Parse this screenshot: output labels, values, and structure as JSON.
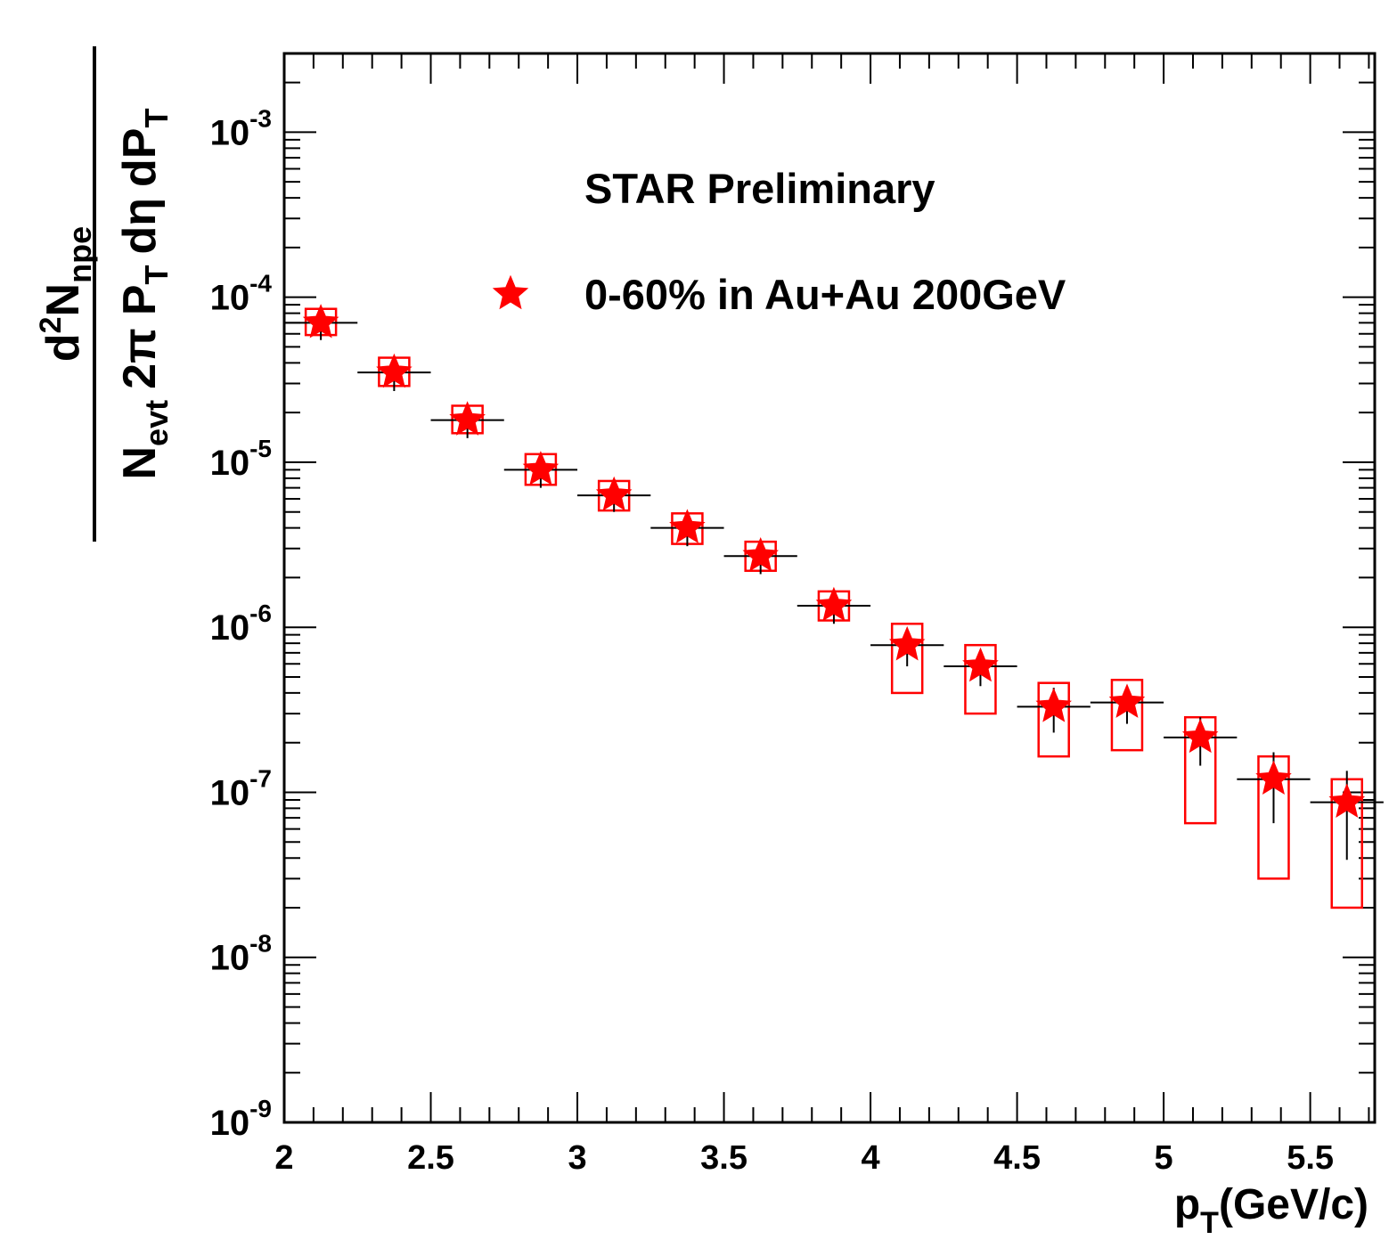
{
  "chart_data": {
    "type": "scatter",
    "title": "STAR Preliminary",
    "xlabel": "p_T(GeV/c)",
    "xlabel_parts": {
      "main": "p",
      "sub": "T",
      "rest": "(GeV/c)"
    },
    "ylabel": "d²N_npe / (N_evt 2π P_T dη dP_T)",
    "ylabel_parts": {
      "num_d": "d",
      "num_sup": "2",
      "num_N": "N",
      "num_sub": "npe",
      "den_N": "N",
      "den_sub": "evt",
      "den_2pi": "2π",
      "den_P": "P",
      "den_Psub": "T",
      "den_deta": "dη",
      "den_dP": "dP",
      "den_dPsub": "T"
    },
    "x_scale": "linear",
    "y_scale": "log",
    "xlim": [
      2.0,
      5.72
    ],
    "ylim": [
      1e-09,
      0.003
    ],
    "x_ticks": [
      {
        "value": 2.0,
        "label": "2"
      },
      {
        "value": 2.5,
        "label": "2.5"
      },
      {
        "value": 3.0,
        "label": "3"
      },
      {
        "value": 3.5,
        "label": "3.5"
      },
      {
        "value": 4.0,
        "label": "4"
      },
      {
        "value": 4.5,
        "label": "4.5"
      },
      {
        "value": 5.0,
        "label": "5"
      },
      {
        "value": 5.5,
        "label": "5.5"
      }
    ],
    "y_ticks": [
      {
        "value": 1e-09,
        "base": "10",
        "exp": "-9"
      },
      {
        "value": 1e-08,
        "base": "10",
        "exp": "-8"
      },
      {
        "value": 1e-07,
        "base": "10",
        "exp": "-7"
      },
      {
        "value": 1e-06,
        "base": "10",
        "exp": "-6"
      },
      {
        "value": 1e-05,
        "base": "10",
        "exp": "-5"
      },
      {
        "value": 0.0001,
        "base": "10",
        "exp": "-4"
      },
      {
        "value": 0.001,
        "base": "10",
        "exp": "-3"
      }
    ],
    "legend": {
      "label": "0-60% in Au+Au 200GeV",
      "marker": "star",
      "placement": "top-right"
    },
    "grid": false,
    "series": [
      {
        "name": "0-60% in Au+Au 200GeV",
        "color": "#ff0000",
        "points": [
          {
            "x": 2.125,
            "y": 7e-05,
            "xerr": 0.125,
            "yerr_lo": 1.5e-05,
            "yerr_hi": 1.5e-05,
            "sys_lo": 5.9e-05,
            "sys_hi": 8.5e-05
          },
          {
            "x": 2.375,
            "y": 3.5e-05,
            "xerr": 0.125,
            "yerr_lo": 8e-06,
            "yerr_hi": 8e-06,
            "sys_lo": 2.9e-05,
            "sys_hi": 4.3e-05
          },
          {
            "x": 2.625,
            "y": 1.8e-05,
            "xerr": 0.125,
            "yerr_lo": 4e-06,
            "yerr_hi": 4e-06,
            "sys_lo": 1.5e-05,
            "sys_hi": 2.2e-05
          },
          {
            "x": 2.875,
            "y": 9e-06,
            "xerr": 0.125,
            "yerr_lo": 2e-06,
            "yerr_hi": 2e-06,
            "sys_lo": 7.3e-06,
            "sys_hi": 1.12e-05
          },
          {
            "x": 3.125,
            "y": 6.3e-06,
            "xerr": 0.125,
            "yerr_lo": 1.3e-06,
            "yerr_hi": 1.3e-06,
            "sys_lo": 5.1e-06,
            "sys_hi": 7.7e-06
          },
          {
            "x": 3.375,
            "y": 4e-06,
            "xerr": 0.125,
            "yerr_lo": 9e-07,
            "yerr_hi": 9e-07,
            "sys_lo": 3.2e-06,
            "sys_hi": 4.9e-06
          },
          {
            "x": 3.625,
            "y": 2.7e-06,
            "xerr": 0.125,
            "yerr_lo": 6e-07,
            "yerr_hi": 6e-07,
            "sys_lo": 2.2e-06,
            "sys_hi": 3.3e-06
          },
          {
            "x": 3.875,
            "y": 1.35e-06,
            "xerr": 0.125,
            "yerr_lo": 3e-07,
            "yerr_hi": 3e-07,
            "sys_lo": 1.1e-06,
            "sys_hi": 1.65e-06
          },
          {
            "x": 4.125,
            "y": 7.8e-07,
            "xerr": 0.125,
            "yerr_lo": 2e-07,
            "yerr_hi": 2e-07,
            "sys_lo": 4e-07,
            "sys_hi": 1.05e-06
          },
          {
            "x": 4.375,
            "y": 5.8e-07,
            "xerr": 0.125,
            "yerr_lo": 1.4e-07,
            "yerr_hi": 1.4e-07,
            "sys_lo": 3e-07,
            "sys_hi": 7.8e-07
          },
          {
            "x": 4.625,
            "y": 3.3e-07,
            "xerr": 0.125,
            "yerr_lo": 1e-07,
            "yerr_hi": 1e-07,
            "sys_lo": 1.65e-07,
            "sys_hi": 4.6e-07
          },
          {
            "x": 4.875,
            "y": 3.5e-07,
            "xerr": 0.125,
            "yerr_lo": 9e-08,
            "yerr_hi": 9e-08,
            "sys_lo": 1.8e-07,
            "sys_hi": 4.8e-07
          },
          {
            "x": 5.125,
            "y": 2.15e-07,
            "xerr": 0.125,
            "yerr_lo": 7e-08,
            "yerr_hi": 7e-08,
            "sys_lo": 6.5e-08,
            "sys_hi": 2.85e-07
          },
          {
            "x": 5.375,
            "y": 1.2e-07,
            "xerr": 0.125,
            "yerr_lo": 5.5e-08,
            "yerr_hi": 5.5e-08,
            "sys_lo": 3e-08,
            "sys_hi": 1.65e-07
          },
          {
            "x": 5.625,
            "y": 8.7e-08,
            "xerr": 0.125,
            "yerr_lo": 4.8e-08,
            "yerr_hi": 4.8e-08,
            "sys_lo": 2e-08,
            "sys_hi": 1.2e-07
          }
        ]
      }
    ]
  }
}
